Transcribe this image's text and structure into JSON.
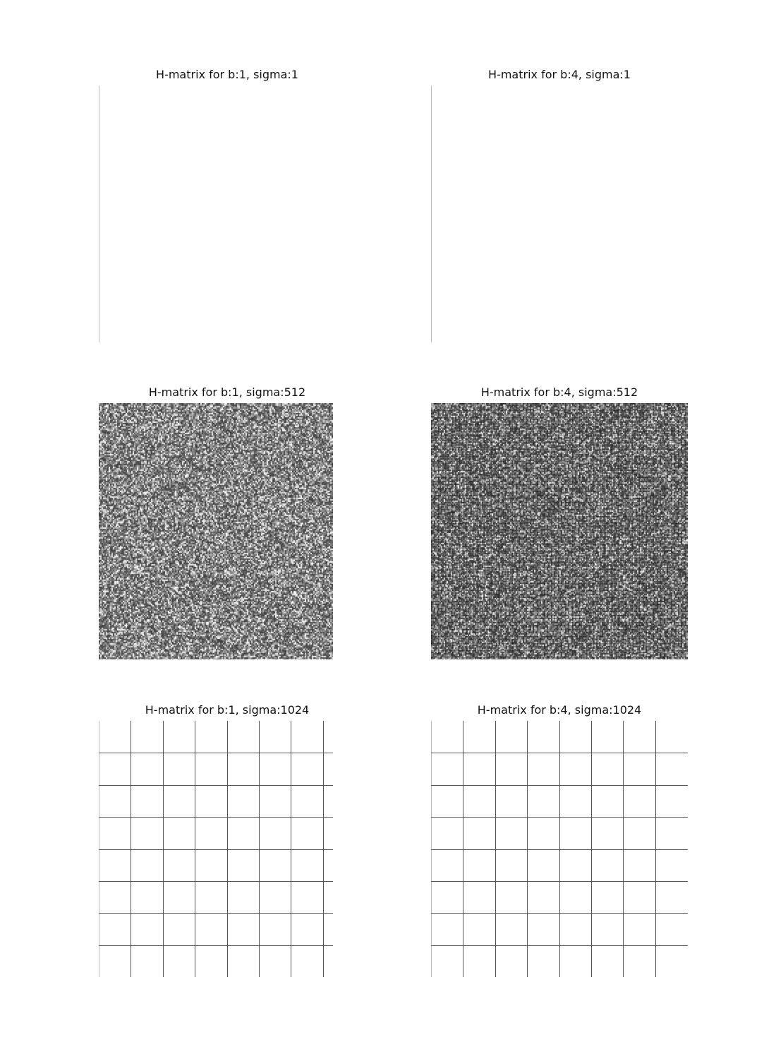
{
  "chart_data": [
    {
      "type": "heatmap",
      "title": "H-matrix for b:1, sigma:1",
      "b": 1,
      "sigma": 1,
      "pattern": "single-boundary",
      "xlabel": "",
      "ylabel": "",
      "colormap": "grayscale",
      "axes_visible": false
    },
    {
      "type": "heatmap",
      "title": "H-matrix for b:4, sigma:1",
      "b": 4,
      "sigma": 1,
      "pattern": "single-boundary",
      "xlabel": "",
      "ylabel": "",
      "colormap": "grayscale",
      "axes_visible": false
    },
    {
      "type": "heatmap",
      "title": "H-matrix for b:1, sigma:512",
      "b": 1,
      "sigma": 512,
      "pattern": "dense-noise",
      "xlabel": "",
      "ylabel": "",
      "colormap": "grayscale",
      "axes_visible": false
    },
    {
      "type": "heatmap",
      "title": "H-matrix for b:4, sigma:512",
      "b": 4,
      "sigma": 512,
      "pattern": "dense-noise-gridded",
      "xlabel": "",
      "ylabel": "",
      "colormap": "grayscale",
      "axes_visible": false
    },
    {
      "type": "heatmap",
      "title": "H-matrix for b:1, sigma:1024",
      "b": 1,
      "sigma": 1024,
      "pattern": "block-grid",
      "grid_divisions": 8,
      "xlabel": "",
      "ylabel": "",
      "colormap": "grayscale",
      "axes_visible": false
    },
    {
      "type": "heatmap",
      "title": "H-matrix for b:4, sigma:1024",
      "b": 4,
      "sigma": 1024,
      "pattern": "block-grid",
      "grid_divisions": 8,
      "xlabel": "",
      "ylabel": "",
      "colormap": "grayscale",
      "axes_visible": false
    }
  ]
}
